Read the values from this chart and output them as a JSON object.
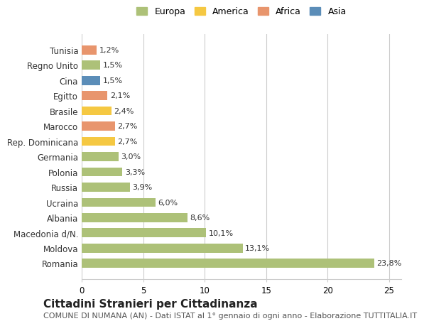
{
  "categories": [
    "Romania",
    "Moldova",
    "Macedonia d/N.",
    "Albania",
    "Ucraina",
    "Russia",
    "Polonia",
    "Germania",
    "Rep. Dominicana",
    "Marocco",
    "Brasile",
    "Egitto",
    "Cina",
    "Regno Unito",
    "Tunisia"
  ],
  "values": [
    23.8,
    13.1,
    10.1,
    8.6,
    6.0,
    3.9,
    3.3,
    3.0,
    2.7,
    2.7,
    2.4,
    2.1,
    1.5,
    1.5,
    1.2
  ],
  "labels": [
    "23,8%",
    "13,1%",
    "10,1%",
    "8,6%",
    "6,0%",
    "3,9%",
    "3,3%",
    "3,0%",
    "2,7%",
    "2,7%",
    "2,4%",
    "2,1%",
    "1,5%",
    "1,5%",
    "1,2%"
  ],
  "continent": [
    "Europa",
    "Europa",
    "Europa",
    "Europa",
    "Europa",
    "Europa",
    "Europa",
    "Europa",
    "America",
    "Africa",
    "America",
    "Africa",
    "Asia",
    "Europa",
    "Africa"
  ],
  "colors": {
    "Europa": "#adc178",
    "America": "#f5c842",
    "Africa": "#e8956d",
    "Asia": "#5b8db8"
  },
  "legend_colors": {
    "Europa": "#adc178",
    "America": "#f5c842",
    "Africa": "#e8956d",
    "Asia": "#5b8db8"
  },
  "title": "Cittadini Stranieri per Cittadinanza",
  "subtitle": "COMUNE DI NUMANA (AN) - Dati ISTAT al 1° gennaio di ogni anno - Elaborazione TUTTITALIA.IT",
  "xlim": [
    0,
    26
  ],
  "xticks": [
    0,
    5,
    10,
    15,
    20,
    25
  ],
  "background_color": "#ffffff",
  "grid_color": "#cccccc",
  "bar_height": 0.6,
  "title_fontsize": 11,
  "subtitle_fontsize": 8,
  "label_fontsize": 8,
  "tick_fontsize": 8.5,
  "legend_fontsize": 9
}
